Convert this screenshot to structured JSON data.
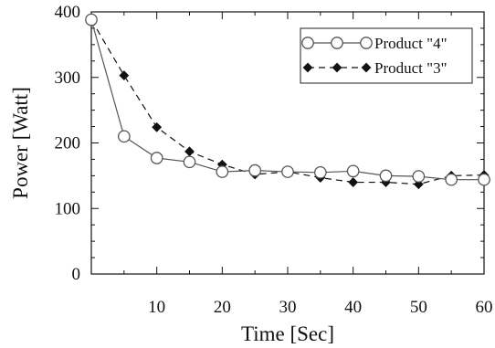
{
  "chart_data": {
    "type": "line",
    "xlabel": "Time [Sec]",
    "ylabel": "Power [Watt]",
    "xlim": [
      0,
      60
    ],
    "ylim": [
      0,
      400
    ],
    "xticks": [
      10,
      20,
      30,
      40,
      50,
      60
    ],
    "yticks": [
      0,
      100,
      200,
      300,
      400
    ],
    "grid": false,
    "legend_position": "top-right",
    "series": [
      {
        "name": "Product \"4\"",
        "marker": "open-circle",
        "line_style": "solid",
        "color": "#555555",
        "x": [
          0,
          5,
          10,
          15,
          20,
          25,
          30,
          35,
          40,
          45,
          50,
          55,
          60
        ],
        "y": [
          388,
          210,
          177,
          171,
          156,
          158,
          156,
          155,
          157,
          150,
          149,
          144,
          144
        ]
      },
      {
        "name": "Product \"3\"",
        "marker": "filled-diamond",
        "line_style": "dashed",
        "color": "#111111",
        "x": [
          0,
          5,
          10,
          15,
          20,
          25,
          30,
          35,
          40,
          45,
          50,
          55,
          60
        ],
        "y": [
          388,
          303,
          224,
          187,
          167,
          152,
          156,
          147,
          140,
          140,
          137,
          150,
          151
        ]
      }
    ]
  }
}
